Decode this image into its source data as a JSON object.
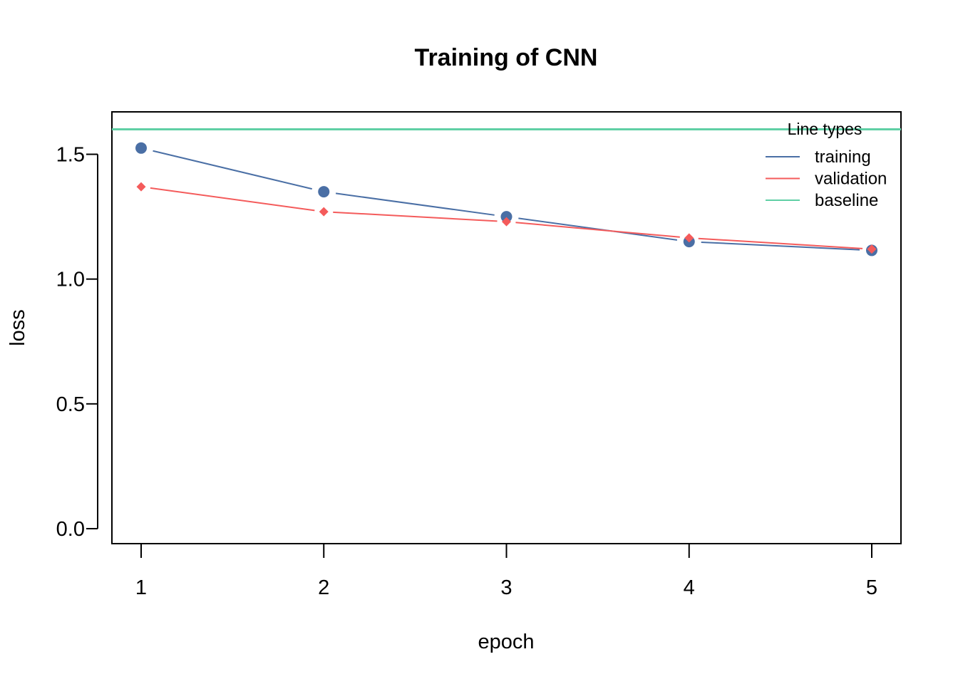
{
  "chart_data": {
    "type": "line",
    "title": "Training of CNN",
    "xlabel": "epoch",
    "ylabel": "loss",
    "x": [
      1,
      2,
      3,
      4,
      5
    ],
    "xticks": [
      "1",
      "2",
      "3",
      "4",
      "5"
    ],
    "yticks": [
      "0.0",
      "0.5",
      "1.0",
      "1.5"
    ],
    "xlim": [
      0.84,
      5.16
    ],
    "ylim": [
      -0.06,
      1.67
    ],
    "grid": false,
    "series": [
      {
        "name": "training",
        "values": [
          1.525,
          1.35,
          1.25,
          1.15,
          1.115
        ],
        "color": "#4a6fa5",
        "marker": "circle"
      },
      {
        "name": "validation",
        "values": [
          1.37,
          1.27,
          1.23,
          1.165,
          1.12
        ],
        "color": "#f45b5b",
        "marker": "diamond"
      }
    ],
    "baseline": {
      "name": "baseline",
      "value": 1.6,
      "color": "#5fcfa5"
    },
    "legend": {
      "title": "Line types",
      "position": "top-right",
      "entries": [
        "training",
        "validation",
        "baseline"
      ]
    }
  }
}
